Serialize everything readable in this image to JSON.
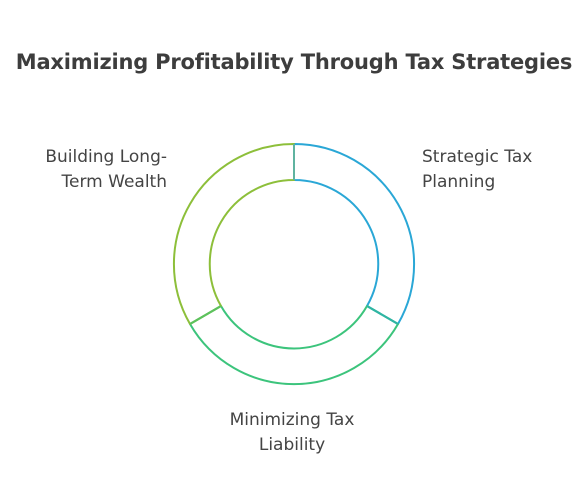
{
  "title": "Maximizing Profitability Through Tax Strategies",
  "segments": [
    {
      "lines": [
        "Strategic Tax",
        "Planning"
      ],
      "color": "#2aa7d6"
    },
    {
      "lines": [
        "Minimizing Tax",
        "Liability"
      ],
      "color": "#3cc47c"
    },
    {
      "lines": [
        "Building Long-",
        "Term Wealth"
      ],
      "color": "#8dbf3a"
    }
  ]
}
